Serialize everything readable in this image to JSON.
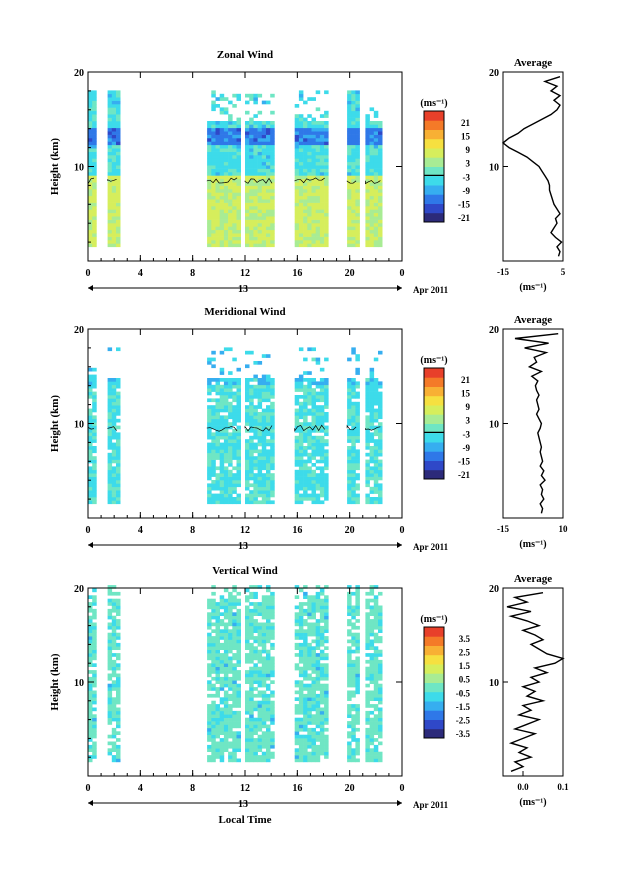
{
  "chart_data": [
    {
      "type": "heatmap",
      "title": "Zonal Wind",
      "ylabel": "Height (km)",
      "ylim": [
        0,
        20
      ],
      "yticks": [
        "10",
        "20"
      ],
      "xlim": [
        0,
        24
      ],
      "xticks": [
        "0",
        "4",
        "8",
        "12",
        "16",
        "20",
        "0"
      ],
      "date_label": "13",
      "month_label": "Apr 2011",
      "colorbar": {
        "unit": "(ms⁻¹)",
        "ticks": [
          "21",
          "15",
          "9",
          "3",
          "-3",
          "-9",
          "-15",
          "-21"
        ]
      },
      "observation_blocks": [
        [
          -0.2,
          0.5
        ],
        [
          1.5,
          2.2
        ],
        [
          9.1,
          11.5
        ],
        [
          12.0,
          14.1
        ],
        [
          15.8,
          18.2
        ],
        [
          19.8,
          20.7
        ],
        [
          21.2,
          22.4
        ]
      ],
      "profile": {
        "title": "Average",
        "xlabel": "(ms⁻¹)",
        "xticks": [
          "-15",
          "5"
        ],
        "xlim": [
          -15,
          5
        ],
        "yticks": [
          "10",
          "20"
        ],
        "height": [
          0.5,
          1,
          1.5,
          2,
          2.5,
          3,
          3.5,
          4,
          4.5,
          5,
          5.5,
          6,
          6.5,
          7,
          7.5,
          8,
          8.5,
          9,
          9.5,
          10,
          10.5,
          11,
          11.5,
          12,
          12.5,
          13,
          13.5,
          14,
          14.5,
          15,
          15.5,
          16,
          16.5,
          17,
          17.5,
          18,
          18.5,
          19,
          19.5
        ],
        "value": [
          3.5,
          4,
          3,
          4.5,
          2.5,
          1,
          2,
          3,
          2.5,
          4,
          3,
          2,
          1.5,
          1,
          0.5,
          0.5,
          0,
          -1,
          -2,
          -3,
          -5,
          -7,
          -10,
          -13,
          -15,
          -13,
          -10,
          -8,
          -5,
          -2,
          1,
          3,
          4,
          2,
          4,
          1,
          3,
          -1,
          4
        ]
      }
    },
    {
      "type": "heatmap",
      "title": "Meridional Wind",
      "ylabel": "Height (km)",
      "ylim": [
        0,
        20
      ],
      "yticks": [
        "10",
        "20"
      ],
      "xlim": [
        0,
        24
      ],
      "xticks": [
        "0",
        "4",
        "8",
        "12",
        "16",
        "20",
        "0"
      ],
      "date_label": "13",
      "month_label": "Apr 2011",
      "colorbar": {
        "unit": "(ms⁻¹)",
        "ticks": [
          "21",
          "15",
          "9",
          "3",
          "-3",
          "-9",
          "-15",
          "-21"
        ]
      },
      "observation_blocks": [
        [
          -0.2,
          0.5
        ],
        [
          1.5,
          2.2
        ],
        [
          9.1,
          11.5
        ],
        [
          12.0,
          14.1
        ],
        [
          15.8,
          18.2
        ],
        [
          19.8,
          20.7
        ],
        [
          21.2,
          22.4
        ]
      ],
      "profile": {
        "title": "Average",
        "xlabel": "(ms⁻¹)",
        "xticks": [
          "-15",
          "10"
        ],
        "xlim": [
          -15,
          10
        ],
        "yticks": [
          "10",
          "20"
        ],
        "height": [
          0.5,
          1,
          1.5,
          2,
          2.5,
          3,
          3.5,
          4,
          4.5,
          5,
          5.5,
          6,
          6.5,
          7,
          7.5,
          8,
          8.5,
          9,
          9.5,
          10,
          10.5,
          11,
          11.5,
          12,
          12.5,
          13,
          13.5,
          14,
          14.5,
          15,
          15.5,
          16,
          16.5,
          17,
          17.5,
          18,
          18.5,
          19,
          19.5
        ],
        "value": [
          1,
          1.5,
          0.5,
          2,
          1,
          1.5,
          0.5,
          2.5,
          1,
          2,
          0.5,
          1.5,
          1,
          0.5,
          1,
          0.5,
          0,
          -0.5,
          0.5,
          1,
          0,
          -1,
          0,
          -0.5,
          -1,
          0,
          -1,
          -1.5,
          -0.5,
          -3,
          1,
          -4,
          -1,
          -2,
          3,
          -6,
          4,
          -10,
          8
        ]
      }
    },
    {
      "type": "heatmap",
      "title": "Vertical Wind",
      "ylabel": "Height (km)",
      "xlabel": "Local Time",
      "ylim": [
        0,
        20
      ],
      "yticks": [
        "10",
        "20"
      ],
      "xlim": [
        0,
        24
      ],
      "xticks": [
        "0",
        "4",
        "8",
        "12",
        "16",
        "20",
        "0"
      ],
      "date_label": "13",
      "month_label": "Apr 2011",
      "colorbar": {
        "unit": "(ms⁻¹)",
        "ticks": [
          "3.5",
          "2.5",
          "1.5",
          "0.5",
          "-0.5",
          "-1.5",
          "-2.5",
          "-3.5"
        ]
      },
      "observation_blocks": [
        [
          -0.2,
          0.5
        ],
        [
          1.5,
          2.2
        ],
        [
          9.1,
          11.5
        ],
        [
          12.0,
          14.1
        ],
        [
          15.8,
          18.2
        ],
        [
          19.8,
          20.7
        ],
        [
          21.2,
          22.4
        ]
      ],
      "profile": {
        "title": "Average",
        "xlabel": "(ms⁻¹)",
        "xticks": [
          "0.0",
          "0.1"
        ],
        "xlim": [
          -0.05,
          0.1
        ],
        "yticks": [
          "10",
          "20"
        ],
        "height": [
          0.5,
          1,
          1.5,
          2,
          2.5,
          3,
          3.5,
          4,
          4.5,
          5,
          5.5,
          6,
          6.5,
          7,
          7.5,
          8,
          8.5,
          9,
          9.5,
          10,
          10.5,
          11,
          11.5,
          12,
          12.5,
          13,
          13.5,
          14,
          14.5,
          15,
          15.5,
          16,
          16.5,
          17,
          17.5,
          18,
          18.5,
          19,
          19.5
        ],
        "value": [
          -0.03,
          0.0,
          -0.02,
          0.02,
          -0.01,
          0.01,
          -0.03,
          0.0,
          0.03,
          -0.02,
          0.01,
          0.04,
          -0.01,
          0.02,
          0.0,
          0.05,
          0.01,
          0.03,
          0.0,
          0.04,
          0.02,
          0.06,
          0.03,
          0.08,
          0.1,
          0.06,
          0.04,
          0.02,
          0.05,
          0.03,
          0.0,
          0.04,
          0.01,
          -0.03,
          0.02,
          -0.04,
          0.01,
          -0.02,
          0.05
        ]
      }
    }
  ],
  "colors": {
    "scale": [
      "#2c2a7a",
      "#2f48c8",
      "#2f78e8",
      "#36aef0",
      "#3ddbea",
      "#6fe6c4",
      "#a8ec94",
      "#d6ee5c",
      "#f6e040",
      "#f8b034",
      "#f47a28",
      "#e8402a"
    ],
    "background": "#ffffff",
    "ink": "#000000"
  }
}
